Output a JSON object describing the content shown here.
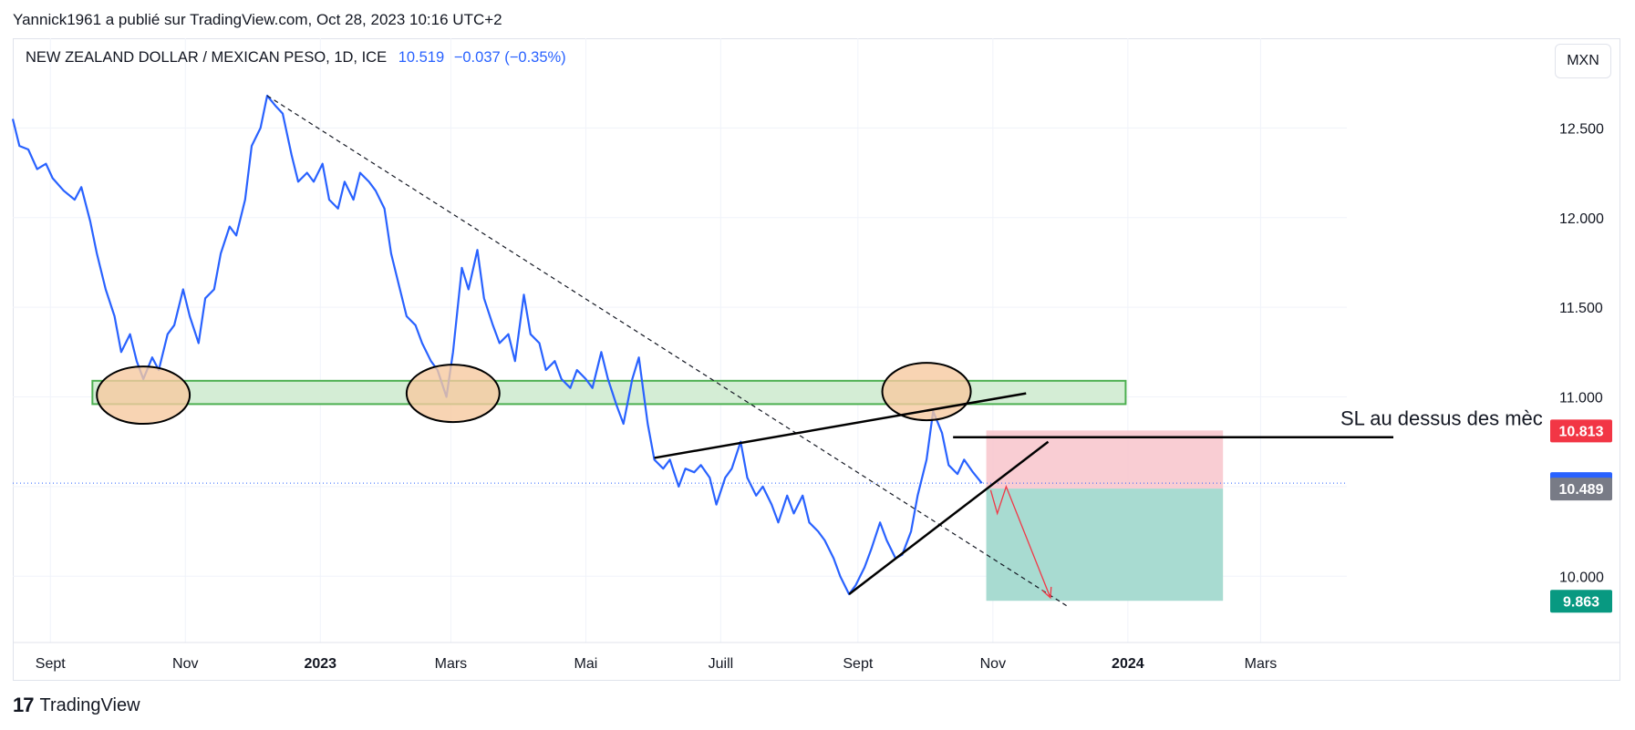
{
  "attribution": "Yannick1961 a publié sur TradingView.com, Oct 28, 2023 10:16 UTC+2",
  "legend": {
    "symbol": "NEW ZEALAND DOLLAR / MEXICAN PESO, 1D, ICE",
    "price": "10.519",
    "change": "−0.037 (−0.35%)"
  },
  "currency_button": "MXN",
  "footer_brand": "TradingView",
  "footer_mark": "17",
  "annotation_note": "SL au dessus des mèc",
  "colors": {
    "price_line": "#2962ff",
    "zone_fill": "#d4edd5",
    "zone_stroke": "#4caf50",
    "ellipse_fill": "#f6c9a0",
    "stop_fill": "#f8c4cb",
    "target_fill": "#a3d9cf",
    "badge_stop": "#f23645",
    "badge_last": "#2962ff",
    "badge_entry": "#787b86",
    "badge_target": "#089981"
  },
  "chart_data": {
    "type": "line",
    "ylim": [
      9.6,
      13.0
    ],
    "y_ticks": [
      10.0,
      10.5,
      11.0,
      11.5,
      12.0,
      12.5
    ],
    "y_tick_labels": [
      "10.000",
      "10.500",
      "11.000",
      "11.500",
      "12.000",
      "12.500"
    ],
    "x_range": [
      "2022-08-15",
      "2024-04-30"
    ],
    "x_ticks": [
      {
        "date": "2022-09-01",
        "label": "Sept",
        "year": false
      },
      {
        "date": "2022-11-01",
        "label": "Nov",
        "year": false
      },
      {
        "date": "2023-01-01",
        "label": "2023",
        "year": true
      },
      {
        "date": "2023-03-01",
        "label": "Mars",
        "year": false
      },
      {
        "date": "2023-05-01",
        "label": "Mai",
        "year": false
      },
      {
        "date": "2023-07-01",
        "label": "Juill",
        "year": false
      },
      {
        "date": "2023-09-01",
        "label": "Sept",
        "year": false
      },
      {
        "date": "2023-11-01",
        "label": "Nov",
        "year": false
      },
      {
        "date": "2024-01-01",
        "label": "2024",
        "year": true
      },
      {
        "date": "2024-03-01",
        "label": "Mars",
        "year": false
      }
    ],
    "series": [
      {
        "points": [
          [
            "2022-08-15",
            12.55
          ],
          [
            "2022-08-18",
            12.4
          ],
          [
            "2022-08-22",
            12.38
          ],
          [
            "2022-08-26",
            12.27
          ],
          [
            "2022-08-30",
            12.3
          ],
          [
            "2022-09-02",
            12.22
          ],
          [
            "2022-09-07",
            12.15
          ],
          [
            "2022-09-12",
            12.1
          ],
          [
            "2022-09-15",
            12.17
          ],
          [
            "2022-09-19",
            11.98
          ],
          [
            "2022-09-22",
            11.8
          ],
          [
            "2022-09-26",
            11.6
          ],
          [
            "2022-09-30",
            11.45
          ],
          [
            "2022-10-03",
            11.25
          ],
          [
            "2022-10-07",
            11.35
          ],
          [
            "2022-10-10",
            11.2
          ],
          [
            "2022-10-13",
            11.1
          ],
          [
            "2022-10-17",
            11.22
          ],
          [
            "2022-10-20",
            11.15
          ],
          [
            "2022-10-24",
            11.35
          ],
          [
            "2022-10-27",
            11.4
          ],
          [
            "2022-10-31",
            11.6
          ],
          [
            "2022-11-03",
            11.45
          ],
          [
            "2022-11-07",
            11.3
          ],
          [
            "2022-11-10",
            11.55
          ],
          [
            "2022-11-14",
            11.6
          ],
          [
            "2022-11-17",
            11.8
          ],
          [
            "2022-11-21",
            11.95
          ],
          [
            "2022-11-24",
            11.9
          ],
          [
            "2022-11-28",
            12.1
          ],
          [
            "2022-12-01",
            12.4
          ],
          [
            "2022-12-05",
            12.5
          ],
          [
            "2022-12-08",
            12.68
          ],
          [
            "2022-12-12",
            12.62
          ],
          [
            "2022-12-15",
            12.58
          ],
          [
            "2022-12-19",
            12.35
          ],
          [
            "2022-12-22",
            12.2
          ],
          [
            "2022-12-26",
            12.25
          ],
          [
            "2022-12-29",
            12.2
          ],
          [
            "2023-01-02",
            12.3
          ],
          [
            "2023-01-05",
            12.1
          ],
          [
            "2023-01-09",
            12.05
          ],
          [
            "2023-01-12",
            12.2
          ],
          [
            "2023-01-16",
            12.1
          ],
          [
            "2023-01-19",
            12.25
          ],
          [
            "2023-01-23",
            12.2
          ],
          [
            "2023-01-26",
            12.15
          ],
          [
            "2023-01-30",
            12.05
          ],
          [
            "2023-02-02",
            11.8
          ],
          [
            "2023-02-06",
            11.6
          ],
          [
            "2023-02-09",
            11.45
          ],
          [
            "2023-02-13",
            11.4
          ],
          [
            "2023-02-16",
            11.3
          ],
          [
            "2023-02-20",
            11.2
          ],
          [
            "2023-02-23",
            11.15
          ],
          [
            "2023-02-27",
            11.0
          ],
          [
            "2023-03-02",
            11.25
          ],
          [
            "2023-03-06",
            11.72
          ],
          [
            "2023-03-09",
            11.6
          ],
          [
            "2023-03-13",
            11.82
          ],
          [
            "2023-03-16",
            11.55
          ],
          [
            "2023-03-20",
            11.4
          ],
          [
            "2023-03-23",
            11.3
          ],
          [
            "2023-03-27",
            11.35
          ],
          [
            "2023-03-30",
            11.2
          ],
          [
            "2023-04-03",
            11.57
          ],
          [
            "2023-04-06",
            11.35
          ],
          [
            "2023-04-10",
            11.3
          ],
          [
            "2023-04-13",
            11.15
          ],
          [
            "2023-04-17",
            11.2
          ],
          [
            "2023-04-20",
            11.1
          ],
          [
            "2023-04-24",
            11.05
          ],
          [
            "2023-04-27",
            11.15
          ],
          [
            "2023-05-01",
            11.1
          ],
          [
            "2023-05-04",
            11.05
          ],
          [
            "2023-05-08",
            11.25
          ],
          [
            "2023-05-11",
            11.1
          ],
          [
            "2023-05-15",
            10.95
          ],
          [
            "2023-05-18",
            10.85
          ],
          [
            "2023-05-22",
            11.1
          ],
          [
            "2023-05-25",
            11.22
          ],
          [
            "2023-05-29",
            10.85
          ],
          [
            "2023-06-01",
            10.65
          ],
          [
            "2023-06-05",
            10.6
          ],
          [
            "2023-06-08",
            10.65
          ],
          [
            "2023-06-12",
            10.5
          ],
          [
            "2023-06-15",
            10.6
          ],
          [
            "2023-06-19",
            10.58
          ],
          [
            "2023-06-22",
            10.62
          ],
          [
            "2023-06-26",
            10.55
          ],
          [
            "2023-06-29",
            10.4
          ],
          [
            "2023-07-03",
            10.55
          ],
          [
            "2023-07-06",
            10.6
          ],
          [
            "2023-07-10",
            10.75
          ],
          [
            "2023-07-13",
            10.55
          ],
          [
            "2023-07-17",
            10.45
          ],
          [
            "2023-07-20",
            10.5
          ],
          [
            "2023-07-24",
            10.4
          ],
          [
            "2023-07-27",
            10.3
          ],
          [
            "2023-07-31",
            10.45
          ],
          [
            "2023-08-03",
            10.35
          ],
          [
            "2023-08-07",
            10.45
          ],
          [
            "2023-08-10",
            10.3
          ],
          [
            "2023-08-14",
            10.25
          ],
          [
            "2023-08-17",
            10.2
          ],
          [
            "2023-08-21",
            10.1
          ],
          [
            "2023-08-24",
            10.0
          ],
          [
            "2023-08-28",
            9.9
          ],
          [
            "2023-08-31",
            9.95
          ],
          [
            "2023-09-04",
            10.05
          ],
          [
            "2023-09-07",
            10.15
          ],
          [
            "2023-09-11",
            10.3
          ],
          [
            "2023-09-14",
            10.2
          ],
          [
            "2023-09-18",
            10.1
          ],
          [
            "2023-09-21",
            10.12
          ],
          [
            "2023-09-25",
            10.25
          ],
          [
            "2023-09-28",
            10.45
          ],
          [
            "2023-10-02",
            10.65
          ],
          [
            "2023-10-05",
            10.92
          ],
          [
            "2023-10-09",
            10.8
          ],
          [
            "2023-10-12",
            10.62
          ],
          [
            "2023-10-16",
            10.57
          ],
          [
            "2023-10-19",
            10.65
          ],
          [
            "2023-10-23",
            10.58
          ],
          [
            "2023-10-27",
            10.519
          ]
        ]
      }
    ],
    "annotations": {
      "zone": {
        "x0": "2022-09-20",
        "x1": "2023-12-31",
        "y0": 10.96,
        "y1": 11.09
      },
      "ellipses": [
        {
          "x": "2022-10-13",
          "y": 11.01,
          "rx_days": 21,
          "ry": 0.16
        },
        {
          "x": "2023-03-02",
          "y": 11.02,
          "rx_days": 21,
          "ry": 0.16
        },
        {
          "x": "2023-10-02",
          "y": 11.03,
          "rx_days": 20,
          "ry": 0.16
        }
      ],
      "dashed_trendline": [
        [
          "2022-12-08",
          12.68
        ],
        [
          "2023-12-05",
          9.83
        ]
      ],
      "upper_wedge_line": [
        [
          "2023-06-01",
          10.66
        ],
        [
          "2023-11-16",
          11.02
        ]
      ],
      "lower_wedge_line": [
        [
          "2023-08-28",
          9.9
        ],
        [
          "2023-11-26",
          10.75
        ]
      ],
      "stop_line": [
        [
          "2023-10-14",
          10.775
        ],
        [
          "2024-04-30",
          10.775
        ]
      ],
      "position": {
        "x0": "2023-10-29",
        "x1": "2024-02-13",
        "entry": 10.489,
        "stop": 10.813,
        "target": 9.863
      },
      "projection_arrow": [
        [
          "2023-10-31",
          10.48
        ],
        [
          "2023-11-03",
          10.35
        ],
        [
          "2023-11-07",
          10.5
        ],
        [
          "2023-11-27",
          9.88
        ]
      ],
      "last_price": 10.519,
      "price_badges": [
        {
          "value": 10.813,
          "label": "10.813",
          "role": "stop"
        },
        {
          "value": 10.519,
          "label": "10.519",
          "role": "last"
        },
        {
          "value": 10.489,
          "label": "10.489",
          "role": "entry"
        },
        {
          "value": 9.863,
          "label": "9.863",
          "role": "target"
        }
      ]
    }
  }
}
